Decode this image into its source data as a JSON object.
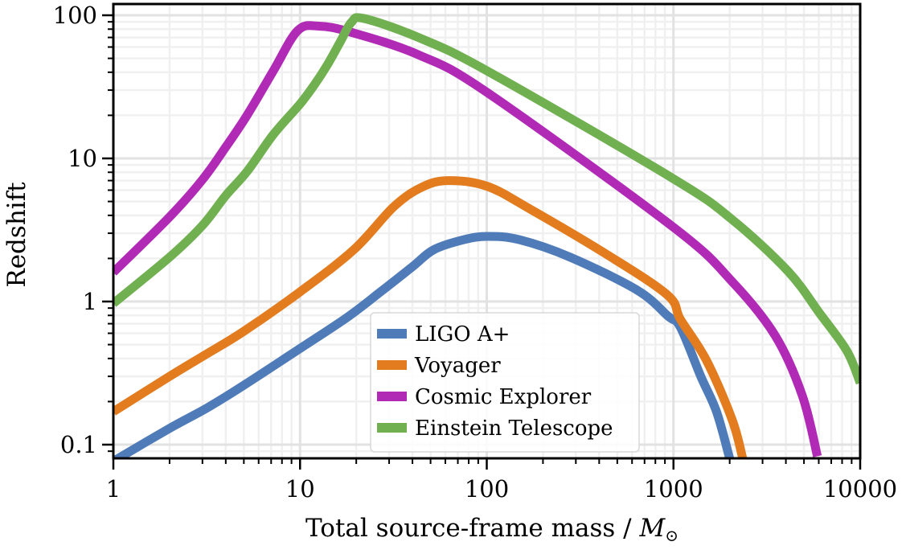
{
  "chart_data": {
    "type": "line",
    "title": "",
    "xlabel": "Total source-frame mass / ",
    "xlabel_symbol": "M",
    "xlabel_subscript": "⊙",
    "ylabel": "Redshift",
    "xscale": "log",
    "yscale": "log",
    "xlim": [
      1,
      10000
    ],
    "ylim": [
      0.08,
      120
    ],
    "grid": true,
    "legend_position": "lower-center",
    "x_ticks": [
      {
        "value": 1,
        "label": "1"
      },
      {
        "value": 10,
        "label": "10"
      },
      {
        "value": 100,
        "label": "100"
      },
      {
        "value": 1000,
        "label": "1000"
      },
      {
        "value": 10000,
        "label": "10000"
      }
    ],
    "y_ticks": [
      {
        "value": 0.1,
        "label": "0.1"
      },
      {
        "value": 1,
        "label": "1"
      },
      {
        "value": 10,
        "label": "10"
      },
      {
        "value": 100,
        "label": "100"
      }
    ],
    "series": [
      {
        "name": "LIGO A+",
        "color": "#4f7cb8",
        "x": [
          1,
          1.06,
          2,
          3.16,
          5,
          10,
          18,
          27,
          40,
          52,
          75,
          101,
          150,
          280,
          640,
          935,
          1090,
          1400,
          1700,
          2000
        ],
        "y": [
          0.075,
          0.08,
          0.13,
          0.18,
          0.26,
          0.47,
          0.78,
          1.17,
          1.75,
          2.3,
          2.7,
          2.85,
          2.7,
          2.04,
          1.2,
          0.79,
          0.66,
          0.3,
          0.17,
          0.08
        ]
      },
      {
        "name": "Voyager",
        "color": "#e27c1e",
        "x": [
          1,
          2,
          3.16,
          5,
          10,
          19.4,
          31.8,
          45,
          62,
          100,
          172,
          464,
          935,
          1090,
          1500,
          2060,
          2350
        ],
        "y": [
          0.17,
          0.3,
          0.43,
          0.62,
          1.17,
          2.3,
          4.6,
          6.3,
          7.0,
          6.4,
          4.4,
          2.04,
          1.1,
          0.75,
          0.39,
          0.15,
          0.08
        ]
      },
      {
        "name": "Cosmic Explorer",
        "color": "#b02ab5",
        "x": [
          1,
          2,
          3,
          4,
          5.2,
          7.2,
          9.7,
          12.6,
          18.8,
          43,
          100,
          1000,
          2060,
          3500,
          4900,
          5900
        ],
        "y": [
          1.6,
          3.9,
          7.1,
          12,
          20,
          41,
          78,
          84,
          76,
          53,
          29,
          3.3,
          1.38,
          0.58,
          0.22,
          0.083
        ]
      },
      {
        "name": "Einstein Telescope",
        "color": "#70b050",
        "x": [
          1,
          2,
          3,
          4,
          5.2,
          7.2,
          10,
          12,
          14,
          16.4,
          18.8,
          22,
          43,
          100,
          1000,
          2060,
          4100,
          6100,
          8500,
          10000
        ],
        "y": [
          0.97,
          2.04,
          3.4,
          5.5,
          8.1,
          14.7,
          24,
          33,
          45,
          65,
          89,
          95,
          70,
          41,
          7.2,
          3.74,
          1.63,
          0.82,
          0.45,
          0.27
        ]
      }
    ]
  }
}
